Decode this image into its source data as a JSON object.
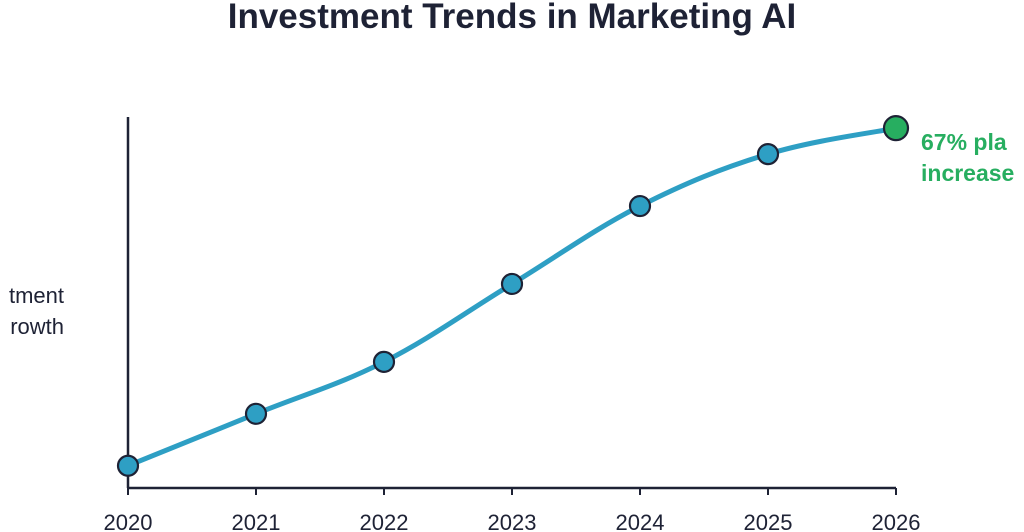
{
  "chart_data": {
    "type": "line",
    "title": "Investment Trends in Marketing AI",
    "ylabel": [
      "tment",
      "rowth"
    ],
    "xlabel": "",
    "categories": [
      "2020",
      "2021",
      "2022",
      "2023",
      "2024",
      "2025",
      "2026"
    ],
    "values": [
      0.06,
      0.2,
      0.34,
      0.55,
      0.76,
      0.9,
      0.97
    ],
    "ylim": [
      0,
      1
    ],
    "y_ticks_shown": false,
    "grid": false,
    "line_color": "#2e9fc4",
    "point_color": "#2e9fc4",
    "highlight_color": "#27ae60",
    "highlight_index": 6,
    "annotation": {
      "lines": [
        "67% pla",
        "increase"
      ],
      "color": "#27ae60",
      "target": "2026"
    }
  }
}
